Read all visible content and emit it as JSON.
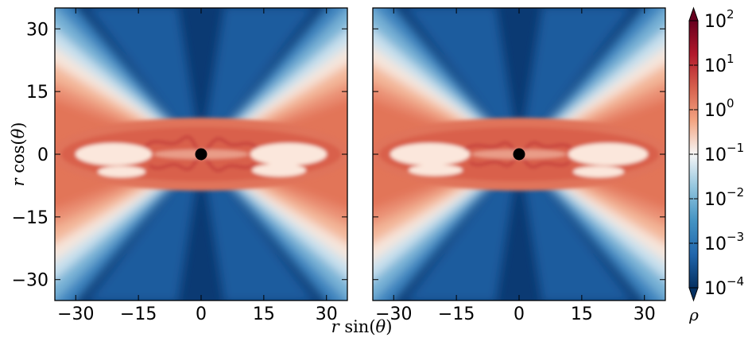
{
  "chart_data": [
    {
      "type": "heatmap",
      "title": "",
      "xlabel": "r sin(θ)",
      "ylabel": "r cos(θ)",
      "xlim": [
        -35,
        35
      ],
      "ylim": [
        -35,
        35
      ],
      "xticks": [
        -30,
        -15,
        0,
        15,
        30
      ],
      "yticks": [
        -30,
        -15,
        0,
        15,
        30
      ],
      "xtick_labels": [
        "−30",
        "−15",
        "0",
        "15",
        "30"
      ],
      "ytick_labels": [
        "30",
        "15",
        "0",
        "−15",
        "−30"
      ],
      "central_marker": {
        "x": 0,
        "y": 0,
        "color": "#000000"
      },
      "description_field": "density rho, log scale, high (~1) in equatorial disk, low (~1e-4) in polar funnels",
      "grid": false
    },
    {
      "type": "heatmap",
      "title": "",
      "xlabel": "r sin(θ)",
      "ylabel": "",
      "xlim": [
        -35,
        35
      ],
      "ylim": [
        -35,
        35
      ],
      "xticks": [
        -30,
        -15,
        0,
        15,
        30
      ],
      "yticks": [
        -30,
        -15,
        0,
        15,
        30
      ],
      "xtick_labels": [
        "−30",
        "−15",
        "0",
        "15",
        "30"
      ],
      "ytick_labels": [],
      "central_marker": {
        "x": 0,
        "y": 0,
        "color": "#000000"
      },
      "grid": false
    }
  ],
  "shared_xlabel": {
    "base": "r",
    "func": "sin",
    "arg": "θ"
  },
  "ylabel_parts": {
    "base": "r",
    "func": "cos",
    "arg": "θ"
  },
  "colorbar": {
    "label": "ρ",
    "scale": "log",
    "range": [
      0.0001,
      100
    ],
    "ticks": [
      {
        "exp": "2",
        "value": 100
      },
      {
        "exp": "1",
        "value": 10
      },
      {
        "exp": "0",
        "value": 1
      },
      {
        "exp": "−1",
        "value": 0.1
      },
      {
        "exp": "−2",
        "value": 0.01
      },
      {
        "exp": "−3",
        "value": 0.001
      },
      {
        "exp": "−4",
        "value": 0.0001
      }
    ],
    "tick_base": "10",
    "colormap": "RdBu_r",
    "colors": [
      "#053061",
      "#2166ac",
      "#4393c3",
      "#92c5de",
      "#f7f7f7",
      "#f4a582",
      "#d6604d",
      "#b2182b",
      "#67001f"
    ],
    "extend": "both"
  }
}
